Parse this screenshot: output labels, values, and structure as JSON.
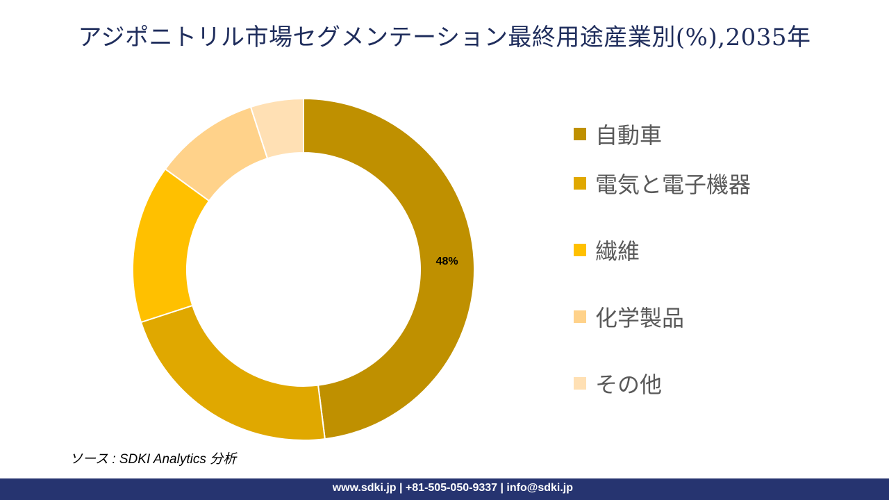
{
  "title": "アジポニトリル市場セグメンテーション最終用途産業別(%),2035年",
  "chart_data": {
    "type": "pie",
    "donut": true,
    "title": "アジポニトリル市場セグメンテーション最終用途産業別(%),2035年",
    "categories": [
      "自動車",
      "電気と電子機器",
      "繊維",
      "化学製品",
      "その他"
    ],
    "values": [
      48,
      22,
      15,
      10,
      5
    ],
    "colors": [
      "#BF9000",
      "#E0A800",
      "#FFC000",
      "#FFD28A",
      "#FFE0B4"
    ],
    "data_labels": [
      "48%",
      "",
      "",
      "",
      ""
    ],
    "legend_position": "right"
  },
  "source": "ソース : SDKI Analytics 分析",
  "footer": "www.sdki.jp | +81-505-050-9337 | info@sdki.jp"
}
